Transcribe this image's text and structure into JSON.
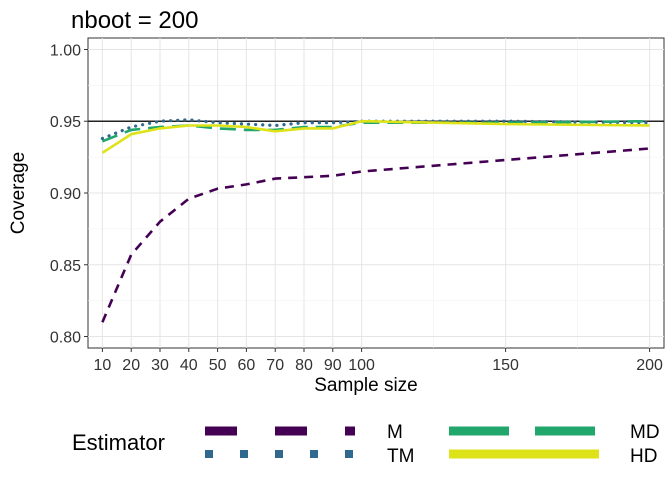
{
  "chart_data": {
    "type": "line",
    "title": "nboot = 200",
    "xlabel": "Sample size",
    "ylabel": "Coverage",
    "x": [
      10,
      20,
      30,
      40,
      50,
      60,
      70,
      80,
      90,
      100,
      150,
      200
    ],
    "xlim": [
      5,
      205
    ],
    "ylim": [
      0.792,
      1.008
    ],
    "xticks": [
      10,
      20,
      30,
      40,
      50,
      60,
      70,
      80,
      90,
      100,
      150,
      200
    ],
    "yticks": [
      0.8,
      0.85,
      0.9,
      0.95,
      1.0
    ],
    "ytick_labels": [
      "0.80",
      "0.85",
      "0.90",
      "0.95",
      "1.00"
    ],
    "reference_line": 0.95,
    "grid": true,
    "legend_position": "bottom",
    "legend_title": "Estimator",
    "series": [
      {
        "name": "M",
        "color": "#440154",
        "style": "dashed",
        "values": [
          0.81,
          0.857,
          0.88,
          0.896,
          0.903,
          0.906,
          0.91,
          0.911,
          0.912,
          0.915,
          0.923,
          0.931
        ]
      },
      {
        "name": "TM",
        "color": "#31688E",
        "style": "dotted",
        "values": [
          0.938,
          0.946,
          0.95,
          0.951,
          0.949,
          0.948,
          0.947,
          0.949,
          0.949,
          0.95,
          0.95,
          0.949
        ]
      },
      {
        "name": "MD",
        "color": "#21A76C",
        "style": "longdash",
        "values": [
          0.936,
          0.944,
          0.946,
          0.947,
          0.945,
          0.944,
          0.944,
          0.946,
          0.946,
          0.949,
          0.949,
          0.95
        ]
      },
      {
        "name": "HD",
        "color": "#DDE318",
        "style": "solid",
        "values": [
          0.928,
          0.941,
          0.945,
          0.947,
          0.947,
          0.946,
          0.943,
          0.945,
          0.945,
          0.95,
          0.948,
          0.947
        ]
      }
    ]
  }
}
